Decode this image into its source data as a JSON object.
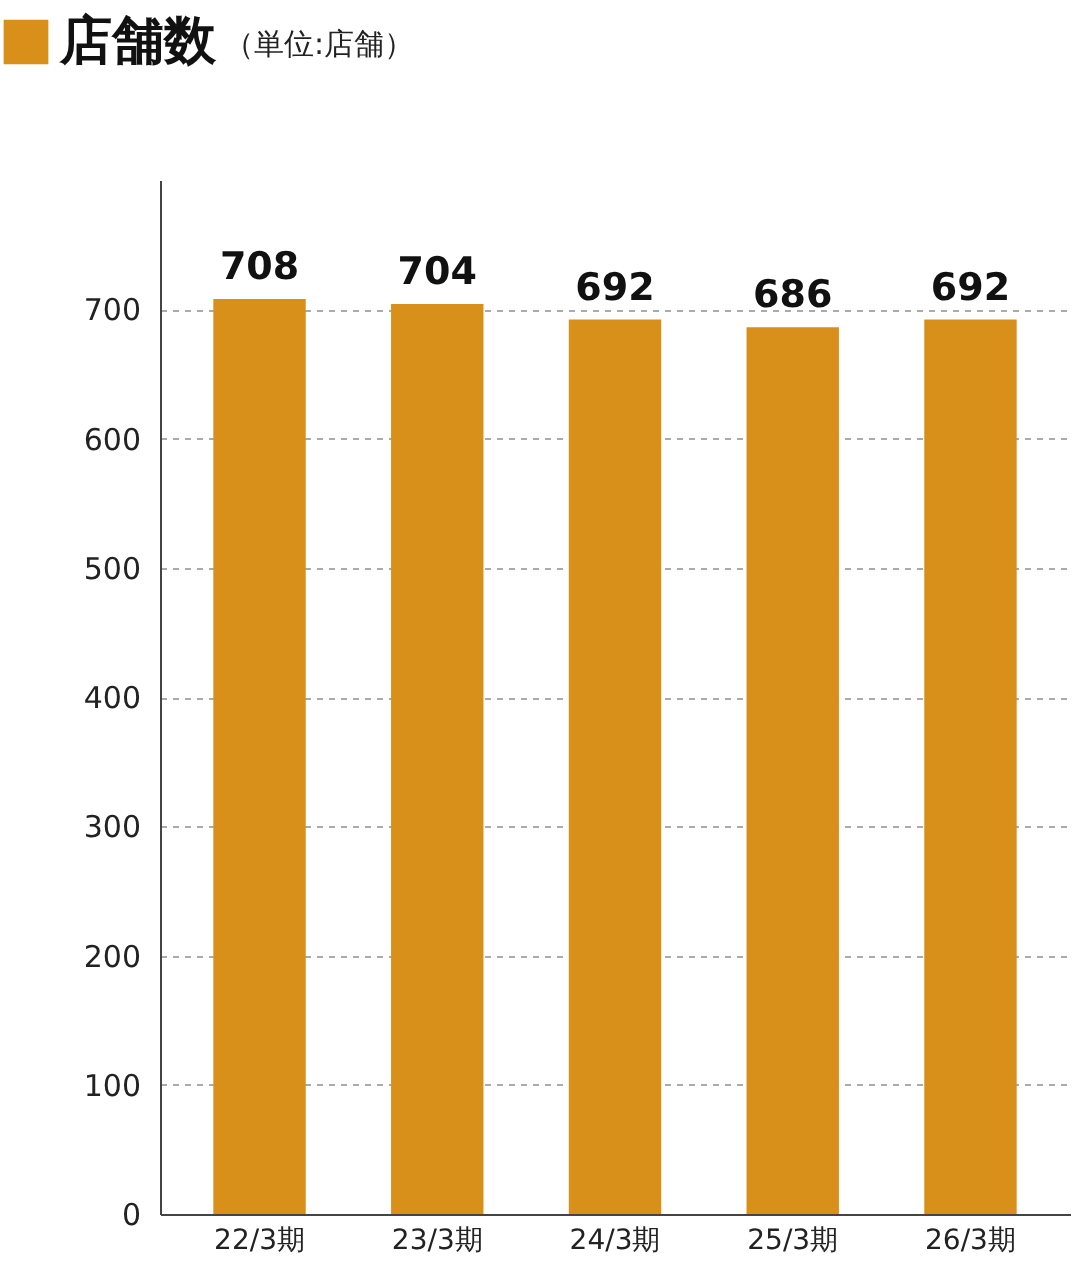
{
  "chart_data": {
    "type": "bar",
    "categories": [
      "22/3期",
      "23/3期",
      "24/3期",
      "25/3期",
      "26/3期"
    ],
    "series": [
      {
        "name": "店舗数",
        "color": "#d9901a",
        "values": [
          708,
          704,
          692,
          686,
          692
        ]
      }
    ],
    "annotations": [
      "（単位:店舗）"
    ],
    "ylim": [
      0,
      800
    ],
    "yticks": [
      0,
      100,
      200,
      300,
      400,
      500,
      600,
      700
    ],
    "grid": "y",
    "legend": "top left",
    "data_labels": true
  }
}
